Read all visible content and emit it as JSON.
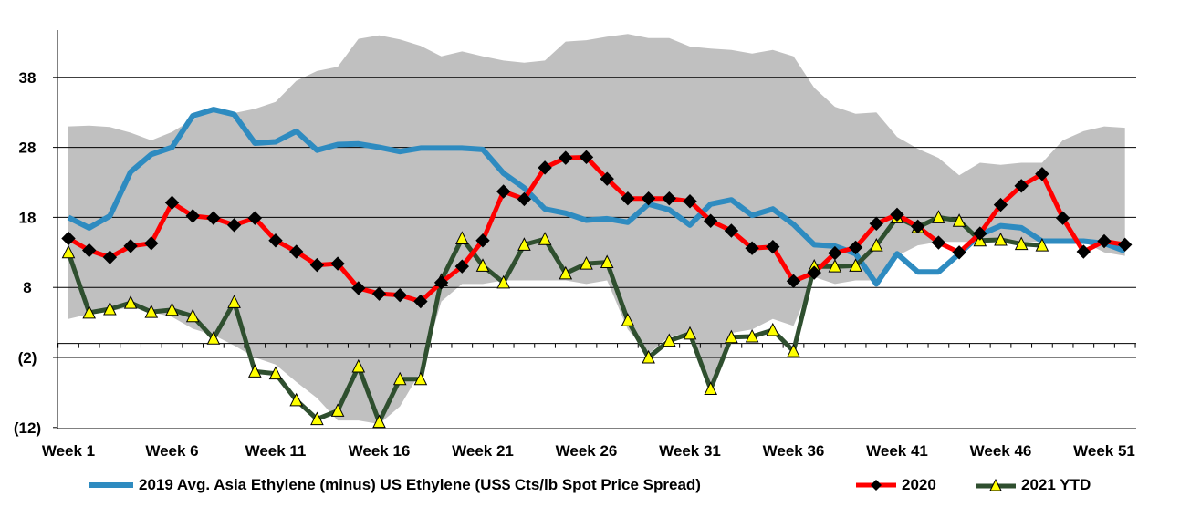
{
  "chart_data": {
    "type": "line",
    "y_tick_labels": [
      "38",
      "28",
      "18",
      "8",
      "(2)",
      "(12)"
    ],
    "y_tick_values": [
      38,
      28,
      18,
      8,
      -2,
      -12
    ],
    "ylim": [
      -12,
      45
    ],
    "x_tick_labels": [
      "Week 1",
      "Week 6",
      "Week 11",
      "Week 16",
      "Week 21",
      "Week 26",
      "Week 31",
      "Week 36",
      "Week 41",
      "Week 46",
      "Week 51"
    ],
    "x_tick_weeks": [
      1,
      6,
      11,
      16,
      21,
      26,
      31,
      36,
      41,
      46,
      51
    ],
    "grid": "horizontal",
    "colors": {
      "range_band": "#c0c0c0",
      "series_2019": "#2e8bc0",
      "series_2020": "#ff0000",
      "series_2020_marker": "#000000",
      "series_2021": "#2f4f2f",
      "series_2021_marker": "#ffff00"
    },
    "range_band": {
      "weeks": [
        1,
        2,
        3,
        4,
        5,
        6,
        7,
        8,
        9,
        10,
        11,
        12,
        13,
        14,
        15,
        16,
        17,
        18,
        19,
        20,
        21,
        22,
        23,
        24,
        25,
        26,
        27,
        28,
        29,
        30,
        31,
        32,
        33,
        34,
        35,
        36,
        37,
        38,
        39,
        40,
        41,
        42,
        43,
        44,
        45,
        46,
        47,
        48,
        49,
        50,
        51,
        52
      ],
      "upper": [
        31.0,
        31.1,
        30.9,
        30.1,
        29.0,
        30.2,
        32.0,
        33.3,
        32.9,
        33.5,
        34.5,
        37.5,
        38.9,
        39.5,
        43.5,
        44.0,
        43.4,
        42.5,
        41.0,
        41.7,
        41.0,
        40.4,
        40.1,
        40.4,
        43.1,
        43.3,
        43.8,
        44.2,
        43.6,
        43.6,
        42.4,
        42.1,
        41.9,
        41.4,
        41.9,
        41.0,
        36.5,
        33.8,
        32.8,
        33.0,
        29.5,
        27.8,
        26.5,
        24.0,
        25.8,
        25.5,
        25.8,
        25.8,
        29.0,
        30.3,
        31.0,
        30.8
      ],
      "lower": [
        3.5,
        4.2,
        4.6,
        5.2,
        4.5,
        3.8,
        2.1,
        1.2,
        -0.3,
        -2.0,
        -3.0,
        -5.5,
        -7.8,
        -11.0,
        -11.0,
        -11.5,
        -9.0,
        -4.0,
        6.0,
        8.5,
        8.5,
        9.0,
        9.0,
        9.0,
        9.0,
        8.5,
        9.0,
        2.0,
        -1.5,
        1.0,
        1.5,
        -6.0,
        1.5,
        2.0,
        3.5,
        2.5,
        9.5,
        8.5,
        9.0,
        9.0,
        12.5,
        14.0,
        14.5,
        14.5,
        14.5,
        14.5,
        14.5,
        14.5,
        14.5,
        14.5,
        13.0,
        12.5
      ]
    },
    "series": [
      {
        "name": "2019 Avg. Asia Ethylene (minus) US Ethylene (US$ Cts/lb Spot Price Spread)",
        "weeks": [
          1,
          2,
          3,
          4,
          5,
          6,
          7,
          8,
          9,
          10,
          11,
          12,
          13,
          14,
          15,
          16,
          17,
          18,
          19,
          20,
          21,
          22,
          23,
          24,
          25,
          26,
          27,
          28,
          29,
          30,
          31,
          32,
          33,
          34,
          35,
          36,
          37,
          38,
          39,
          40,
          41,
          42,
          43,
          44,
          45,
          46,
          47,
          48,
          49,
          50,
          51,
          52
        ],
        "values": [
          18.0,
          16.5,
          18.2,
          24.5,
          27.0,
          28.0,
          32.5,
          33.4,
          32.7,
          28.6,
          28.8,
          30.3,
          27.6,
          28.4,
          28.5,
          28.0,
          27.4,
          27.9,
          27.9,
          27.9,
          27.7,
          24.3,
          22.2,
          19.2,
          18.6,
          17.6,
          17.8,
          17.3,
          19.9,
          19.1,
          16.9,
          19.9,
          20.5,
          18.3,
          19.2,
          17.0,
          14.1,
          13.9,
          12.8,
          8.5,
          12.8,
          10.2,
          10.2,
          12.8,
          15.5,
          16.8,
          16.5,
          14.6,
          14.6,
          14.6,
          14.3,
          13.2
        ]
      },
      {
        "name": "2020",
        "weeks": [
          1,
          2,
          3,
          4,
          5,
          6,
          7,
          8,
          9,
          10,
          11,
          12,
          13,
          14,
          15,
          16,
          17,
          18,
          19,
          20,
          21,
          22,
          23,
          24,
          25,
          26,
          27,
          28,
          29,
          30,
          31,
          32,
          33,
          34,
          35,
          36,
          37,
          38,
          39,
          40,
          41,
          42,
          43,
          44,
          45,
          46,
          47,
          48,
          49,
          50,
          51,
          52
        ],
        "values": [
          15.0,
          13.3,
          12.3,
          13.9,
          14.3,
          20.1,
          18.2,
          17.9,
          16.9,
          17.9,
          14.7,
          13.1,
          11.2,
          11.4,
          7.9,
          7.1,
          6.9,
          6.0,
          8.7,
          11.0,
          14.7,
          21.7,
          20.6,
          25.1,
          26.5,
          26.6,
          23.5,
          20.7,
          20.7,
          20.7,
          20.3,
          17.5,
          16.1,
          13.6,
          13.8,
          8.9,
          10.1,
          12.9,
          13.7,
          17.1,
          18.4,
          16.7,
          14.4,
          13.0,
          15.7,
          19.8,
          22.5,
          24.2,
          17.9,
          13.1,
          14.6,
          14.1
        ]
      },
      {
        "name": "2021 YTD",
        "weeks": [
          1,
          2,
          3,
          4,
          5,
          6,
          7,
          8,
          9,
          10,
          11,
          12,
          13,
          14,
          15,
          16,
          17,
          18,
          19,
          20,
          21,
          22,
          23,
          24,
          25,
          26,
          27,
          28,
          29,
          30,
          31,
          32,
          33,
          34,
          35,
          36,
          37,
          38,
          39,
          40,
          41,
          42,
          43,
          44,
          45,
          46,
          47,
          48
        ],
        "values": [
          13.0,
          4.4,
          4.9,
          5.8,
          4.5,
          4.8,
          3.9,
          0.7,
          5.9,
          -4.0,
          -4.3,
          -8.1,
          -10.8,
          -9.6,
          -3.3,
          -11.2,
          -5.1,
          -5.1,
          9.0,
          15.0,
          11.1,
          8.7,
          14.1,
          14.9,
          10.0,
          11.4,
          11.6,
          3.3,
          -2.0,
          0.4,
          1.4,
          -6.5,
          0.9,
          1.0,
          1.9,
          -1.1,
          11.0,
          11.0,
          11.1,
          14.0,
          18.0,
          16.6,
          18.0,
          17.5,
          14.7,
          14.8,
          14.2,
          14.0
        ]
      }
    ]
  },
  "legend": {
    "items": [
      {
        "label": "2019 Avg. Asia Ethylene (minus) US Ethylene (US$ Cts/lb Spot Price Spread)"
      },
      {
        "label": "2020"
      },
      {
        "label": "2021 YTD"
      }
    ]
  }
}
